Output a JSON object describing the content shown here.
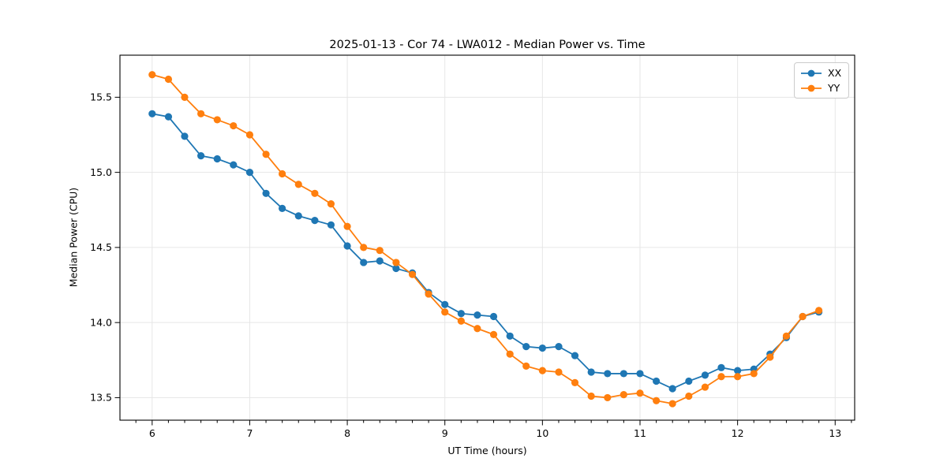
{
  "window": {
    "background": "#ffffff"
  },
  "chart_data": {
    "type": "line",
    "title": "2025-01-13 - Cor 74 - LWA012 - Median Power vs. Time",
    "xlabel": "UT Time (hours)",
    "ylabel": "Median Power (CPU)",
    "xlim": [
      5.67,
      13.2
    ],
    "ylim": [
      13.35,
      15.78
    ],
    "grid": true,
    "grid_color": "#e6e6e6",
    "spine_color": "#000000",
    "legend_position": "upper right",
    "marker": "circle",
    "x_minor_tick_step_hours": 0.1667,
    "xticks": {
      "values": [
        6,
        7,
        8,
        9,
        10,
        11,
        12,
        13
      ],
      "labels": [
        "6",
        "7",
        "8",
        "9",
        "10",
        "11",
        "12",
        "13"
      ]
    },
    "yticks": {
      "values": [
        13.5,
        14.0,
        14.5,
        15.0,
        15.5
      ],
      "labels": [
        "13.5",
        "14.0",
        "14.5",
        "15.0",
        "15.5"
      ]
    },
    "x": [
      6.0,
      6.167,
      6.333,
      6.5,
      6.667,
      6.833,
      7.0,
      7.167,
      7.333,
      7.5,
      7.667,
      7.833,
      8.0,
      8.167,
      8.333,
      8.5,
      8.667,
      8.833,
      9.0,
      9.167,
      9.333,
      9.5,
      9.667,
      9.833,
      10.0,
      10.167,
      10.333,
      10.5,
      10.667,
      10.833,
      11.0,
      11.167,
      11.333,
      11.5,
      11.667,
      11.833,
      12.0,
      12.167,
      12.333,
      12.5,
      12.667,
      12.833
    ],
    "series": [
      {
        "name": "XX",
        "color": "#1f77b4",
        "values": [
          15.39,
          15.37,
          15.24,
          15.11,
          15.09,
          15.05,
          15.0,
          14.86,
          14.76,
          14.71,
          14.68,
          14.65,
          14.51,
          14.4,
          14.41,
          14.36,
          14.33,
          14.2,
          14.12,
          14.06,
          14.05,
          14.04,
          13.91,
          13.84,
          13.83,
          13.84,
          13.78,
          13.67,
          13.66,
          13.66,
          13.66,
          13.61,
          13.56,
          13.61,
          13.65,
          13.7,
          13.68,
          13.69,
          13.79,
          13.9,
          14.04,
          14.07
        ]
      },
      {
        "name": "YY",
        "color": "#ff7f0e",
        "values": [
          15.65,
          15.62,
          15.5,
          15.39,
          15.35,
          15.31,
          15.25,
          15.12,
          14.99,
          14.92,
          14.86,
          14.79,
          14.64,
          14.5,
          14.48,
          14.4,
          14.32,
          14.19,
          14.07,
          14.01,
          13.96,
          13.92,
          13.79,
          13.71,
          13.68,
          13.67,
          13.6,
          13.51,
          13.5,
          13.52,
          13.53,
          13.48,
          13.46,
          13.51,
          13.57,
          13.64,
          13.64,
          13.66,
          13.77,
          13.91,
          14.04,
          14.08
        ]
      }
    ]
  }
}
